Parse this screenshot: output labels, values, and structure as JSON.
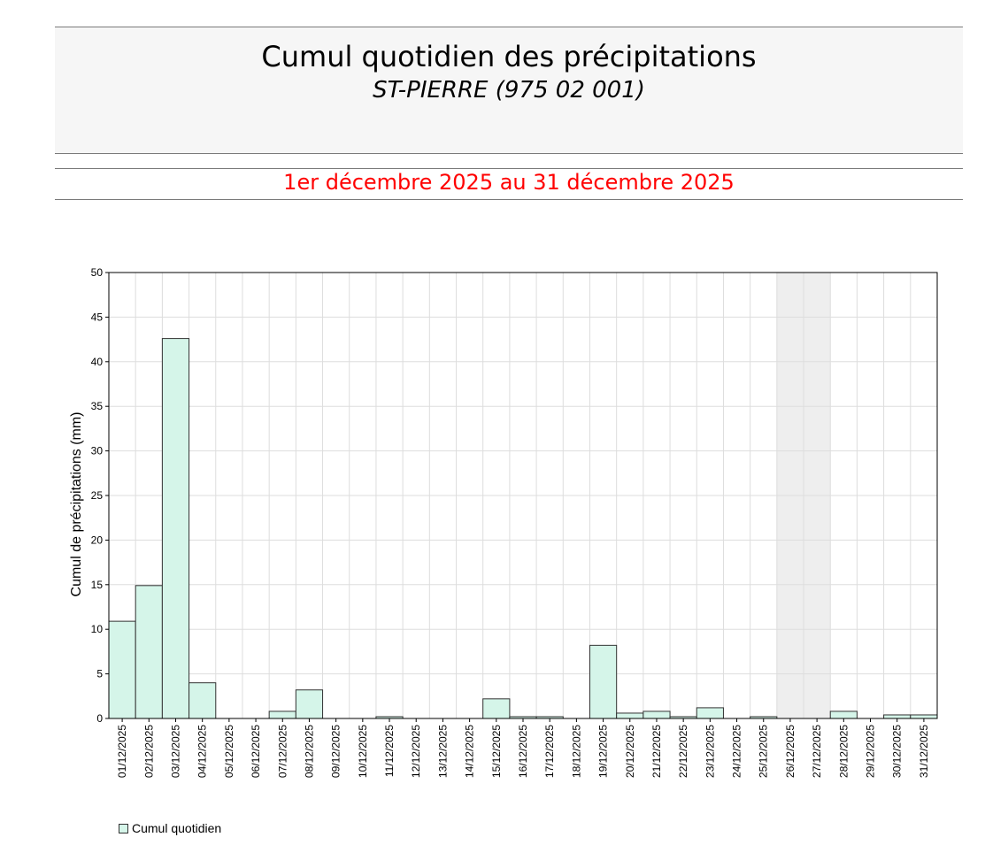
{
  "header": {
    "title": "Cumul quotidien des précipitations",
    "station": "ST-PIERRE (975 02 001)"
  },
  "period": {
    "label": "1er décembre 2025 au 31 décembre 2025"
  },
  "colors": {
    "bar_fill": "#d5f5e9",
    "bar_stroke": "#333333",
    "period_text": "#ff0000",
    "missing_band": "#eeeeee",
    "grid": "#dddddd"
  },
  "chart_data": {
    "type": "bar",
    "ylabel": "Cumul de précipitations (mm)",
    "xlabel": "",
    "ylim": [
      0,
      50
    ],
    "yticks": [
      0,
      5,
      10,
      15,
      20,
      25,
      30,
      35,
      40,
      45,
      50
    ],
    "grid": true,
    "legend_position": "bottom-left",
    "categories": [
      "01/12/2025",
      "02/12/2025",
      "03/12/2025",
      "04/12/2025",
      "05/12/2025",
      "06/12/2025",
      "07/12/2025",
      "08/12/2025",
      "09/12/2025",
      "10/12/2025",
      "11/12/2025",
      "12/12/2025",
      "13/12/2025",
      "14/12/2025",
      "15/12/2025",
      "16/12/2025",
      "17/12/2025",
      "18/12/2025",
      "19/12/2025",
      "20/12/2025",
      "21/12/2025",
      "22/12/2025",
      "23/12/2025",
      "24/12/2025",
      "25/12/2025",
      "26/12/2025",
      "27/12/2025",
      "28/12/2025",
      "29/12/2025",
      "30/12/2025",
      "31/12/2025"
    ],
    "series": [
      {
        "name": "Cumul quotidien",
        "values": [
          10.9,
          14.9,
          42.6,
          4.0,
          0,
          0,
          0.8,
          3.2,
          0,
          0,
          0.2,
          0,
          0,
          0,
          2.2,
          0.2,
          0.2,
          0,
          8.2,
          0.6,
          0.8,
          0.2,
          1.2,
          0,
          0.2,
          null,
          null,
          0.8,
          0,
          0.4,
          0.4
        ]
      }
    ],
    "missing_days": [
      "26/12/2025",
      "27/12/2025"
    ]
  }
}
